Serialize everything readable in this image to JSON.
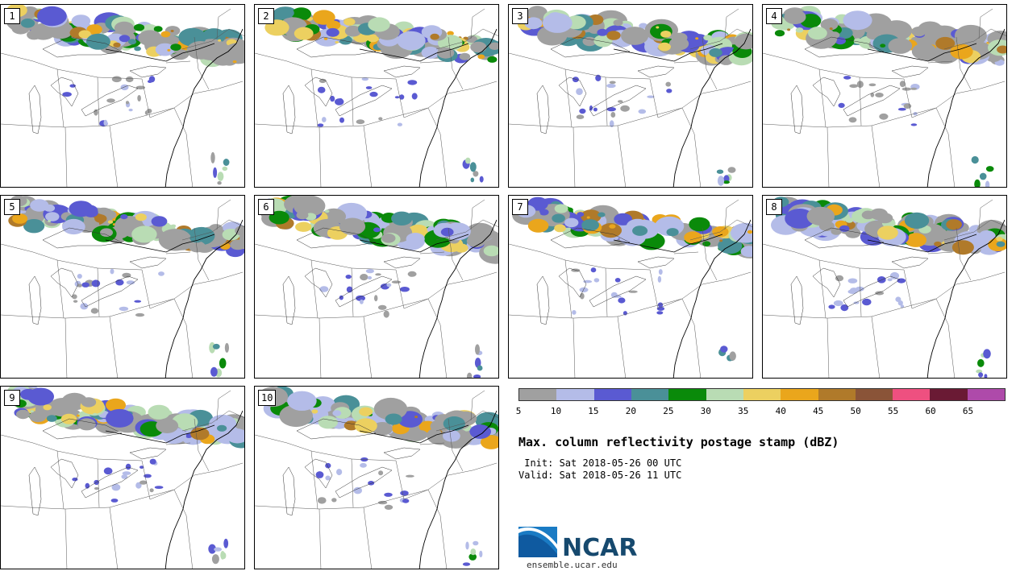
{
  "panels": [
    {
      "label": "1"
    },
    {
      "label": "2"
    },
    {
      "label": "3"
    },
    {
      "label": "4"
    },
    {
      "label": "5"
    },
    {
      "label": "6"
    },
    {
      "label": "7"
    },
    {
      "label": "8"
    },
    {
      "label": "9"
    },
    {
      "label": "10"
    }
  ],
  "colorbar": {
    "colors": [
      "#a0a0a0",
      "#b4bce8",
      "#5a5ad2",
      "#4a9098",
      "#0a8a0a",
      "#b9dcb4",
      "#ecd060",
      "#eaa61c",
      "#b07a2a",
      "#8a5438",
      "#ee5080",
      "#6a1a34",
      "#ae4aaa"
    ],
    "ticks": [
      "5",
      "10",
      "15",
      "20",
      "25",
      "30",
      "35",
      "40",
      "45",
      "50",
      "55",
      "60",
      "65"
    ]
  },
  "title": "Max. column reflectivity postage stamp (dBZ)",
  "init": " Init: Sat 2018-05-26 00 UTC",
  "valid": "Valid: Sat 2018-05-26 11 UTC",
  "logo": {
    "name": "NCAR",
    "url": "ensemble.ucar.edu"
  }
}
